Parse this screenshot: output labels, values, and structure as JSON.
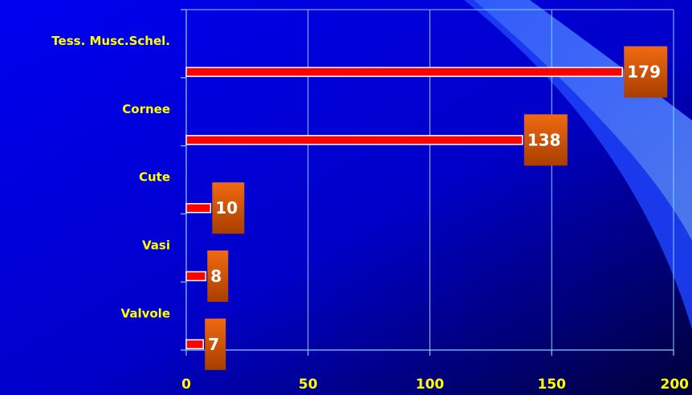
{
  "colors": {
    "background": "#0000ee",
    "gridline": "#7fd4ff",
    "bar": "#ff0000",
    "label_box_top": "#f06a10",
    "label_box_bottom": "#a83e00",
    "category_text": "#ffff00",
    "data_label_text": "#ffffff"
  },
  "chart_data": {
    "type": "bar",
    "orientation": "horizontal",
    "categories": [
      "Tess. Musc.Schel.",
      "Cornee",
      "Cute",
      "Vasi",
      "Valvole"
    ],
    "values": [
      179,
      138,
      10,
      8,
      7
    ],
    "xlim": [
      0,
      200
    ],
    "x_ticks": [
      "0",
      "50",
      "100",
      "150",
      "200"
    ],
    "data_labels": [
      "179",
      "138",
      "10",
      "8",
      "7"
    ],
    "grid": true,
    "legend": "none"
  }
}
